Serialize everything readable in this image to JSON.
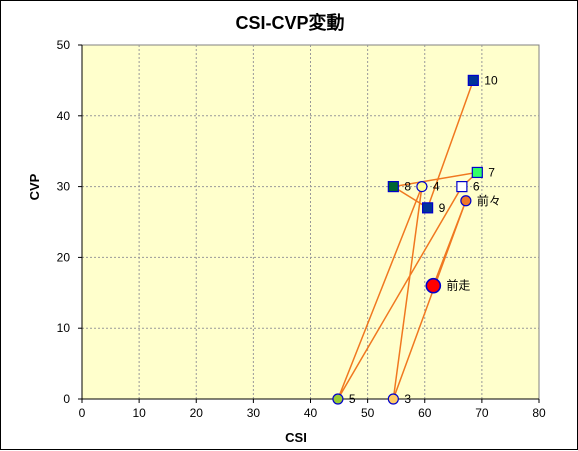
{
  "chart_data": {
    "type": "scatter",
    "title": "CSI-CVP変動",
    "xlabel": "CSI",
    "ylabel": "CVP",
    "xlim": [
      0,
      80
    ],
    "ylim": [
      0,
      50
    ],
    "xticks": [
      0,
      10,
      20,
      30,
      40,
      50,
      60,
      70,
      80
    ],
    "yticks": [
      0,
      10,
      20,
      30,
      40,
      50
    ],
    "grid": true,
    "plot_background": "#ffffcc",
    "line_color": "#f07820",
    "points": [
      {
        "label": "前走",
        "x": 61.5,
        "y": 16,
        "marker": "circle-large",
        "fill": "#ff0000",
        "stroke": "#0000cc"
      },
      {
        "label": "前々",
        "x": 67.2,
        "y": 28,
        "marker": "circle",
        "fill": "#f07828",
        "stroke": "#0000cc"
      },
      {
        "label": "3",
        "x": 54.5,
        "y": 0,
        "marker": "circle",
        "fill": "#ffcc66",
        "stroke": "#0000cc"
      },
      {
        "label": "4",
        "x": 59.5,
        "y": 30,
        "marker": "circle",
        "fill": "#ffff99",
        "stroke": "#0000cc"
      },
      {
        "label": "5",
        "x": 44.8,
        "y": 0,
        "marker": "circle",
        "fill": "#99cc33",
        "stroke": "#0000cc"
      },
      {
        "label": "6",
        "x": 66.5,
        "y": 30,
        "marker": "square",
        "fill": "#ffffff",
        "stroke": "#0000cc"
      },
      {
        "label": "7",
        "x": 69.2,
        "y": 32,
        "marker": "square",
        "fill": "#33ff66",
        "stroke": "#0000cc"
      },
      {
        "label": "8",
        "x": 54.5,
        "y": 30,
        "marker": "square",
        "fill": "#006633",
        "stroke": "#0000cc"
      },
      {
        "label": "9",
        "x": 60.5,
        "y": 27,
        "marker": "square",
        "fill": "#003399",
        "stroke": "#0000cc"
      },
      {
        "label": "10",
        "x": 68.5,
        "y": 45,
        "marker": "square",
        "fill": "#003399",
        "stroke": "#0000cc"
      }
    ]
  }
}
